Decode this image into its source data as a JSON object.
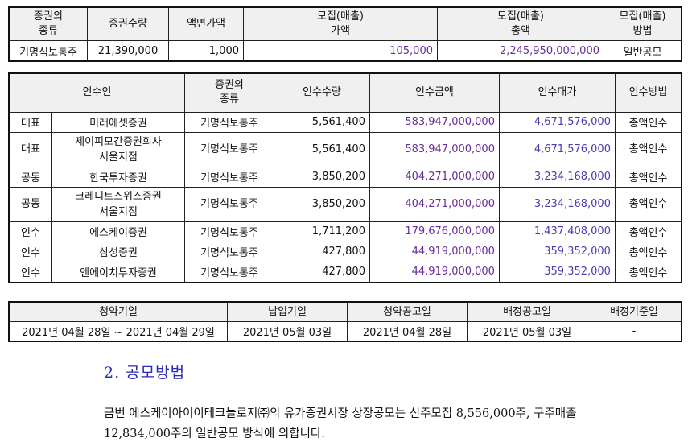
{
  "offer_table": {
    "headers": [
      "증권의\n종류",
      "증권수량",
      "액면가액",
      "모집(매출)\n가액",
      "모집(매출)\n총액",
      "모집(매출)\n방법"
    ],
    "row": {
      "type": "기명식보통주",
      "quantity": "21,390,000",
      "par_value": "1,000",
      "offer_price": "105,000",
      "offer_total": "2,245,950,000,000",
      "method": "일반공모"
    }
  },
  "underwriter_table": {
    "headers": [
      "인수인",
      "증권의\n종류",
      "인수수량",
      "인수금액",
      "인수대가",
      "인수방법"
    ],
    "rows": [
      {
        "role": "대표",
        "name": "미래에셋증권",
        "type": "기명식보통주",
        "qty": "5,561,400",
        "amount": "583,947,000,000",
        "fee": "4,671,576,000",
        "method": "총액인수"
      },
      {
        "role": "대표",
        "name": "제이피모간증권회사\n서울지점",
        "type": "기명식보통주",
        "qty": "5,561,400",
        "amount": "583,947,000,000",
        "fee": "4,671,576,000",
        "method": "총액인수"
      },
      {
        "role": "공동",
        "name": "한국투자증권",
        "type": "기명식보통주",
        "qty": "3,850,200",
        "amount": "404,271,000,000",
        "fee": "3,234,168,000",
        "method": "총액인수"
      },
      {
        "role": "공동",
        "name": "크레디트스위스증권\n서울지점",
        "type": "기명식보통주",
        "qty": "3,850,200",
        "amount": "404,271,000,000",
        "fee": "3,234,168,000",
        "method": "총액인수"
      },
      {
        "role": "인수",
        "name": "에스케이증권",
        "type": "기명식보통주",
        "qty": "1,711,200",
        "amount": "179,676,000,000",
        "fee": "1,437,408,000",
        "method": "총액인수"
      },
      {
        "role": "인수",
        "name": "삼성증권",
        "type": "기명식보통주",
        "qty": "427,800",
        "amount": "44,919,000,000",
        "fee": "359,352,000",
        "method": "총액인수"
      },
      {
        "role": "인수",
        "name": "엔에이치투자증권",
        "type": "기명식보통주",
        "qty": "427,800",
        "amount": "44,919,000,000",
        "fee": "359,352,000",
        "method": "총액인수"
      }
    ]
  },
  "schedule_table": {
    "headers": [
      "청약기일",
      "납입기일",
      "청약공고일",
      "배정공고일",
      "배정기준일"
    ],
    "values": [
      "2021년 04월 28일 ~ 2021년 04월 29일",
      "2021년 05월 03일",
      "2021년 04월 28일",
      "2021년 05월 03일",
      "-"
    ]
  },
  "section": {
    "title": "2. 공모방법",
    "paragraph": "금번 에스케이아이이테크놀로지㈜의 유가증권시장 상장공모는 신주모집 8,556,000주, 구주매출 12,834,000주의 일반공모 방식에 의합니다."
  }
}
